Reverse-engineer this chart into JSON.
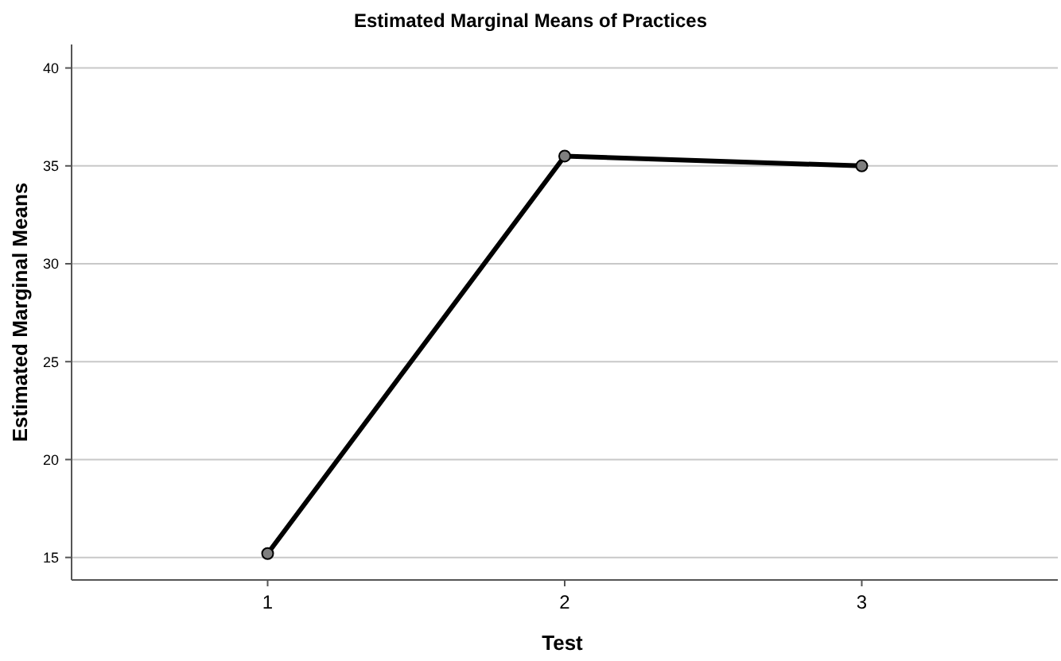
{
  "chart_data": {
    "type": "line",
    "title": "Estimated Marginal Means of Practices",
    "xlabel": "Test",
    "ylabel": "Estimated Marginal Means",
    "categories": [
      "1",
      "2",
      "3"
    ],
    "series": [
      {
        "color": "#000000",
        "values": [
          15.2,
          35.5,
          35.0
        ]
      }
    ],
    "ylim": [
      13.85,
      41.2
    ],
    "yticks": [
      15,
      20,
      25,
      30,
      35,
      40
    ],
    "grid": "y",
    "marker": "circle",
    "line_style": "solid"
  }
}
